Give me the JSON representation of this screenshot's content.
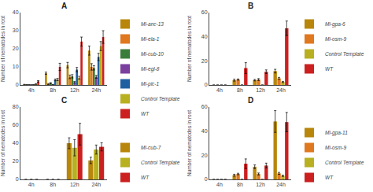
{
  "chart_data": [
    {
      "type": "bar",
      "title": "A",
      "categories": [
        "4h",
        "8h",
        "12h",
        "24h"
      ],
      "ylabel": "Number of nematodes in root",
      "series": [
        {
          "name": "Mi-anc-13",
          "color": "#b8860b",
          "values": [
            0.2,
            6.5,
            11.0,
            19.0
          ],
          "errors": [
            0.15,
            0.6,
            1.5,
            2.5
          ]
        },
        {
          "name": "Mi-ela-1",
          "color": "#e07820",
          "values": [
            0.1,
            0.5,
            4.5,
            10.0
          ],
          "errors": [
            0.05,
            0.3,
            1.0,
            1.8
          ]
        },
        {
          "name": "Mi-cub-10",
          "color": "#3a7d3a",
          "values": [
            0.1,
            1.0,
            4.8,
            9.5
          ],
          "errors": [
            0.05,
            0.3,
            0.9,
            1.2
          ]
        },
        {
          "name": "Mi-egl-8",
          "color": "#7b3f9e",
          "values": [
            0.05,
            0.2,
            1.5,
            4.5
          ],
          "errors": [
            0.02,
            0.1,
            0.4,
            0.8
          ]
        },
        {
          "name": "Mi-plc-1",
          "color": "#2060a0",
          "values": [
            0.1,
            2.8,
            8.5,
            15.5
          ],
          "errors": [
            0.05,
            0.5,
            1.2,
            2.0
          ]
        },
        {
          "name": "Control Template",
          "color": "#b8b020",
          "values": [
            0.5,
            3.0,
            4.0,
            21.5
          ],
          "errors": [
            0.2,
            0.6,
            0.8,
            2.5
          ]
        },
        {
          "name": "WT",
          "color": "#cc2020",
          "values": [
            2.0,
            10.0,
            24.0,
            26.5
          ],
          "errors": [
            0.4,
            2.0,
            2.5,
            3.5
          ]
        }
      ],
      "ylim": [
        0,
        40
      ],
      "yticks": [
        0,
        10,
        20,
        30,
        40
      ],
      "grid": false,
      "legend": "right"
    },
    {
      "type": "bar",
      "title": "B",
      "categories": [
        "4h",
        "8h",
        "12h",
        "24h"
      ],
      "ylabel": "Number of nematodes in root",
      "series": [
        {
          "name": "Mi-gpa-6",
          "color": "#b8860b",
          "values": [
            0.0,
            4.0,
            4.0,
            11.5
          ],
          "errors": [
            0.0,
            0.8,
            0.6,
            1.5
          ]
        },
        {
          "name": "Mi-osm-9",
          "color": "#e07820",
          "values": [
            0.0,
            4.5,
            4.5,
            5.5
          ],
          "errors": [
            0.0,
            0.5,
            0.8,
            0.8
          ]
        },
        {
          "name": "Control Template",
          "color": "#b8b020",
          "values": [
            0.0,
            0.0,
            0.0,
            2.5
          ],
          "errors": [
            0.0,
            0.0,
            0.0,
            0.5
          ]
        },
        {
          "name": "WT",
          "color": "#cc2020",
          "values": [
            0.0,
            14.0,
            11.0,
            47.0
          ],
          "errors": [
            0.0,
            4.5,
            1.5,
            6.0
          ]
        }
      ],
      "ylim": [
        0,
        60
      ],
      "yticks": [
        0,
        20,
        40,
        60
      ],
      "grid": false,
      "legend": "right"
    },
    {
      "type": "bar",
      "title": "C",
      "categories": [
        "4h",
        "8h",
        "12h",
        "24h"
      ],
      "ylabel": "Number of nematodes in root",
      "series": [
        {
          "name": "Mi-cub-7",
          "color": "#b8860b",
          "values": [
            0.0,
            0.0,
            40.0,
            21.0
          ],
          "errors": [
            0.0,
            0.0,
            6.0,
            3.5
          ]
        },
        {
          "name": "Control Template",
          "color": "#b8b020",
          "values": [
            0.0,
            0.0,
            35.0,
            33.0
          ],
          "errors": [
            0.0,
            0.0,
            9.0,
            5.0
          ]
        },
        {
          "name": "WT",
          "color": "#cc2020",
          "values": [
            0.0,
            0.0,
            50.0,
            36.0
          ],
          "errors": [
            0.0,
            0.0,
            12.0,
            4.5
          ]
        }
      ],
      "ylim": [
        0,
        80
      ],
      "yticks": [
        0,
        20,
        40,
        60,
        80
      ],
      "grid": false,
      "legend": "right"
    },
    {
      "type": "bar",
      "title": "D",
      "categories": [
        "4h",
        "8h",
        "12h",
        "24h"
      ],
      "ylabel": "Number of nematodes in root",
      "series": [
        {
          "name": "Mi-gpa-11",
          "color": "#b8860b",
          "values": [
            0.0,
            3.5,
            10.5,
            48.0
          ],
          "errors": [
            0.0,
            0.8,
            1.5,
            9.0
          ]
        },
        {
          "name": "Mi-osm-9",
          "color": "#e07820",
          "values": [
            0.0,
            4.5,
            4.5,
            5.0
          ],
          "errors": [
            0.0,
            0.6,
            0.8,
            0.8
          ]
        },
        {
          "name": "Control Template",
          "color": "#b8b020",
          "values": [
            0.0,
            0.0,
            0.0,
            3.0
          ],
          "errors": [
            0.0,
            0.0,
            0.0,
            0.5
          ]
        },
        {
          "name": "WT",
          "color": "#cc2020",
          "values": [
            0.0,
            13.0,
            11.5,
            47.5
          ],
          "errors": [
            0.0,
            4.0,
            2.0,
            8.0
          ]
        }
      ],
      "ylim": [
        0,
        60
      ],
      "yticks": [
        0,
        20,
        40,
        60
      ],
      "grid": false,
      "legend": "right"
    }
  ]
}
